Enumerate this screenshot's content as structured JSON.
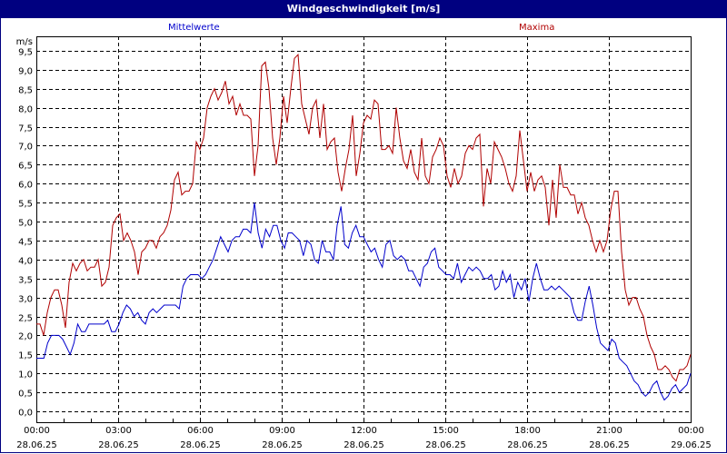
{
  "title": "Windgeschwindigkeit [m/s]",
  "legend": {
    "mean_label": "Mittelwerte",
    "max_label": "Maxima",
    "mean_color": "#0000cc",
    "max_color": "#b00000"
  },
  "colors": {
    "titlebar": "#000080",
    "grid": "#000000",
    "background": "#ffffff"
  },
  "chart_data": {
    "type": "line",
    "title": "Windgeschwindigkeit [m/s]",
    "xlabel": "",
    "ylabel": "m/s",
    "ylim": [
      0,
      9.5
    ],
    "yticks": [
      "0,0",
      "0,5",
      "1,0",
      "1,5",
      "2,0",
      "2,5",
      "3,0",
      "3,5",
      "4,0",
      "4,5",
      "5,0",
      "5,5",
      "6,0",
      "6,5",
      "7,0",
      "7,5",
      "8,0",
      "8,5",
      "9,0",
      "9,5"
    ],
    "xticks": [
      {
        "time": "00:00",
        "date": "28.06.25"
      },
      {
        "time": "03:00",
        "date": "28.06.25"
      },
      {
        "time": "06:00",
        "date": "28.06.25"
      },
      {
        "time": "09:00",
        "date": "28.06.25"
      },
      {
        "time": "12:00",
        "date": "28.06.25"
      },
      {
        "time": "15:00",
        "date": "28.06.25"
      },
      {
        "time": "18:00",
        "date": "28.06.25"
      },
      {
        "time": "21:00",
        "date": "28.06.25"
      },
      {
        "time": "00:00",
        "date": "29.06.25"
      }
    ],
    "x_interval_minutes": 10,
    "grid": true,
    "legend_position": "top",
    "series": [
      {
        "name": "Mittelwerte",
        "color": "#0000cc",
        "values": [
          1.4,
          1.4,
          1.4,
          1.8,
          2.0,
          2.0,
          2.0,
          1.9,
          1.7,
          1.5,
          1.8,
          2.3,
          2.1,
          2.1,
          2.3,
          2.3,
          2.3,
          2.3,
          2.3,
          2.4,
          2.1,
          2.1,
          2.3,
          2.6,
          2.8,
          2.7,
          2.5,
          2.6,
          2.4,
          2.3,
          2.6,
          2.7,
          2.6,
          2.7,
          2.8,
          2.8,
          2.8,
          2.8,
          2.7,
          3.3,
          3.5,
          3.6,
          3.6,
          3.6,
          3.5,
          3.6,
          3.8,
          4.0,
          4.3,
          4.6,
          4.4,
          4.2,
          4.5,
          4.6,
          4.6,
          4.8,
          4.8,
          4.7,
          5.5,
          4.7,
          4.3,
          4.8,
          4.6,
          4.9,
          4.9,
          4.5,
          4.3,
          4.7,
          4.7,
          4.6,
          4.5,
          4.1,
          4.5,
          4.4,
          4.0,
          3.9,
          4.5,
          4.2,
          4.2,
          4.0,
          4.9,
          5.4,
          4.4,
          4.3,
          4.7,
          4.9,
          4.6,
          4.6,
          4.4,
          4.2,
          4.3,
          4.0,
          3.8,
          4.4,
          4.5,
          4.1,
          4.0,
          4.1,
          4.0,
          3.7,
          3.7,
          3.5,
          3.3,
          3.8,
          3.9,
          4.2,
          4.3,
          3.8,
          3.7,
          3.6,
          3.6,
          3.5,
          3.9,
          3.4,
          3.6,
          3.8,
          3.7,
          3.8,
          3.7,
          3.5,
          3.5,
          3.6,
          3.2,
          3.3,
          3.7,
          3.4,
          3.6,
          3.0,
          3.4,
          3.2,
          3.5,
          2.9,
          3.5,
          3.9,
          3.5,
          3.2,
          3.2,
          3.3,
          3.2,
          3.3,
          3.2,
          3.1,
          3.0,
          2.6,
          2.4,
          2.4,
          2.9,
          3.3,
          2.8,
          2.2,
          1.8,
          1.7,
          1.6,
          1.9,
          1.8,
          1.4,
          1.3,
          1.2,
          1.0,
          0.8,
          0.7,
          0.5,
          0.4,
          0.5,
          0.7,
          0.8,
          0.5,
          0.3,
          0.4,
          0.6,
          0.7,
          0.5,
          0.6,
          0.7,
          1.0
        ]
      },
      {
        "name": "Maxima",
        "color": "#b00000",
        "values": [
          2.3,
          2.3,
          2.0,
          2.6,
          3.0,
          3.2,
          3.2,
          2.8,
          2.2,
          3.4,
          3.9,
          3.7,
          3.9,
          4.0,
          3.7,
          3.8,
          3.8,
          4.0,
          3.3,
          3.4,
          3.8,
          4.9,
          5.1,
          5.2,
          4.5,
          4.7,
          4.5,
          4.2,
          3.6,
          4.2,
          4.3,
          4.5,
          4.5,
          4.3,
          4.6,
          4.7,
          4.9,
          5.3,
          6.1,
          6.3,
          5.7,
          5.8,
          5.8,
          6.0,
          7.1,
          6.9,
          7.2,
          8.0,
          8.3,
          8.5,
          8.2,
          8.4,
          8.7,
          8.1,
          8.3,
          7.8,
          8.1,
          7.8,
          7.8,
          7.7,
          6.2,
          7.0,
          9.1,
          9.2,
          8.5,
          7.2,
          6.5,
          7.2,
          8.3,
          7.6,
          8.5,
          9.3,
          9.4,
          8.1,
          7.7,
          7.3,
          8.0,
          8.2,
          7.2,
          8.1,
          6.9,
          7.1,
          7.2,
          6.3,
          5.8,
          6.4,
          6.9,
          7.8,
          6.2,
          6.8,
          7.6,
          7.8,
          7.7,
          8.2,
          8.1,
          6.9,
          6.9,
          7.0,
          6.8,
          8.0,
          7.2,
          6.6,
          6.4,
          6.9,
          6.3,
          6.1,
          7.2,
          6.2,
          6.0,
          6.7,
          6.9,
          7.2,
          7.0,
          6.2,
          5.9,
          6.4,
          6.0,
          6.2,
          6.8,
          7.0,
          6.9,
          7.2,
          7.3,
          5.4,
          6.4,
          6.0,
          7.1,
          6.9,
          6.7,
          6.4,
          6.0,
          5.8,
          6.2,
          7.4,
          6.6,
          5.8,
          6.3,
          5.8,
          6.1,
          6.2,
          5.9,
          4.9,
          6.1,
          5.1,
          6.5,
          5.9,
          5.9,
          5.7,
          5.7,
          5.2,
          5.5,
          5.1,
          4.9,
          4.5,
          4.2,
          4.5,
          4.2,
          4.5,
          5.3,
          5.8,
          5.8,
          4.2,
          3.2,
          2.8,
          3.0,
          3.0,
          2.7,
          2.5,
          2.0,
          1.7,
          1.5,
          1.1,
          1.1,
          1.2,
          1.1,
          0.9,
          0.8,
          1.1,
          1.1,
          1.2,
          1.5
        ]
      }
    ]
  }
}
